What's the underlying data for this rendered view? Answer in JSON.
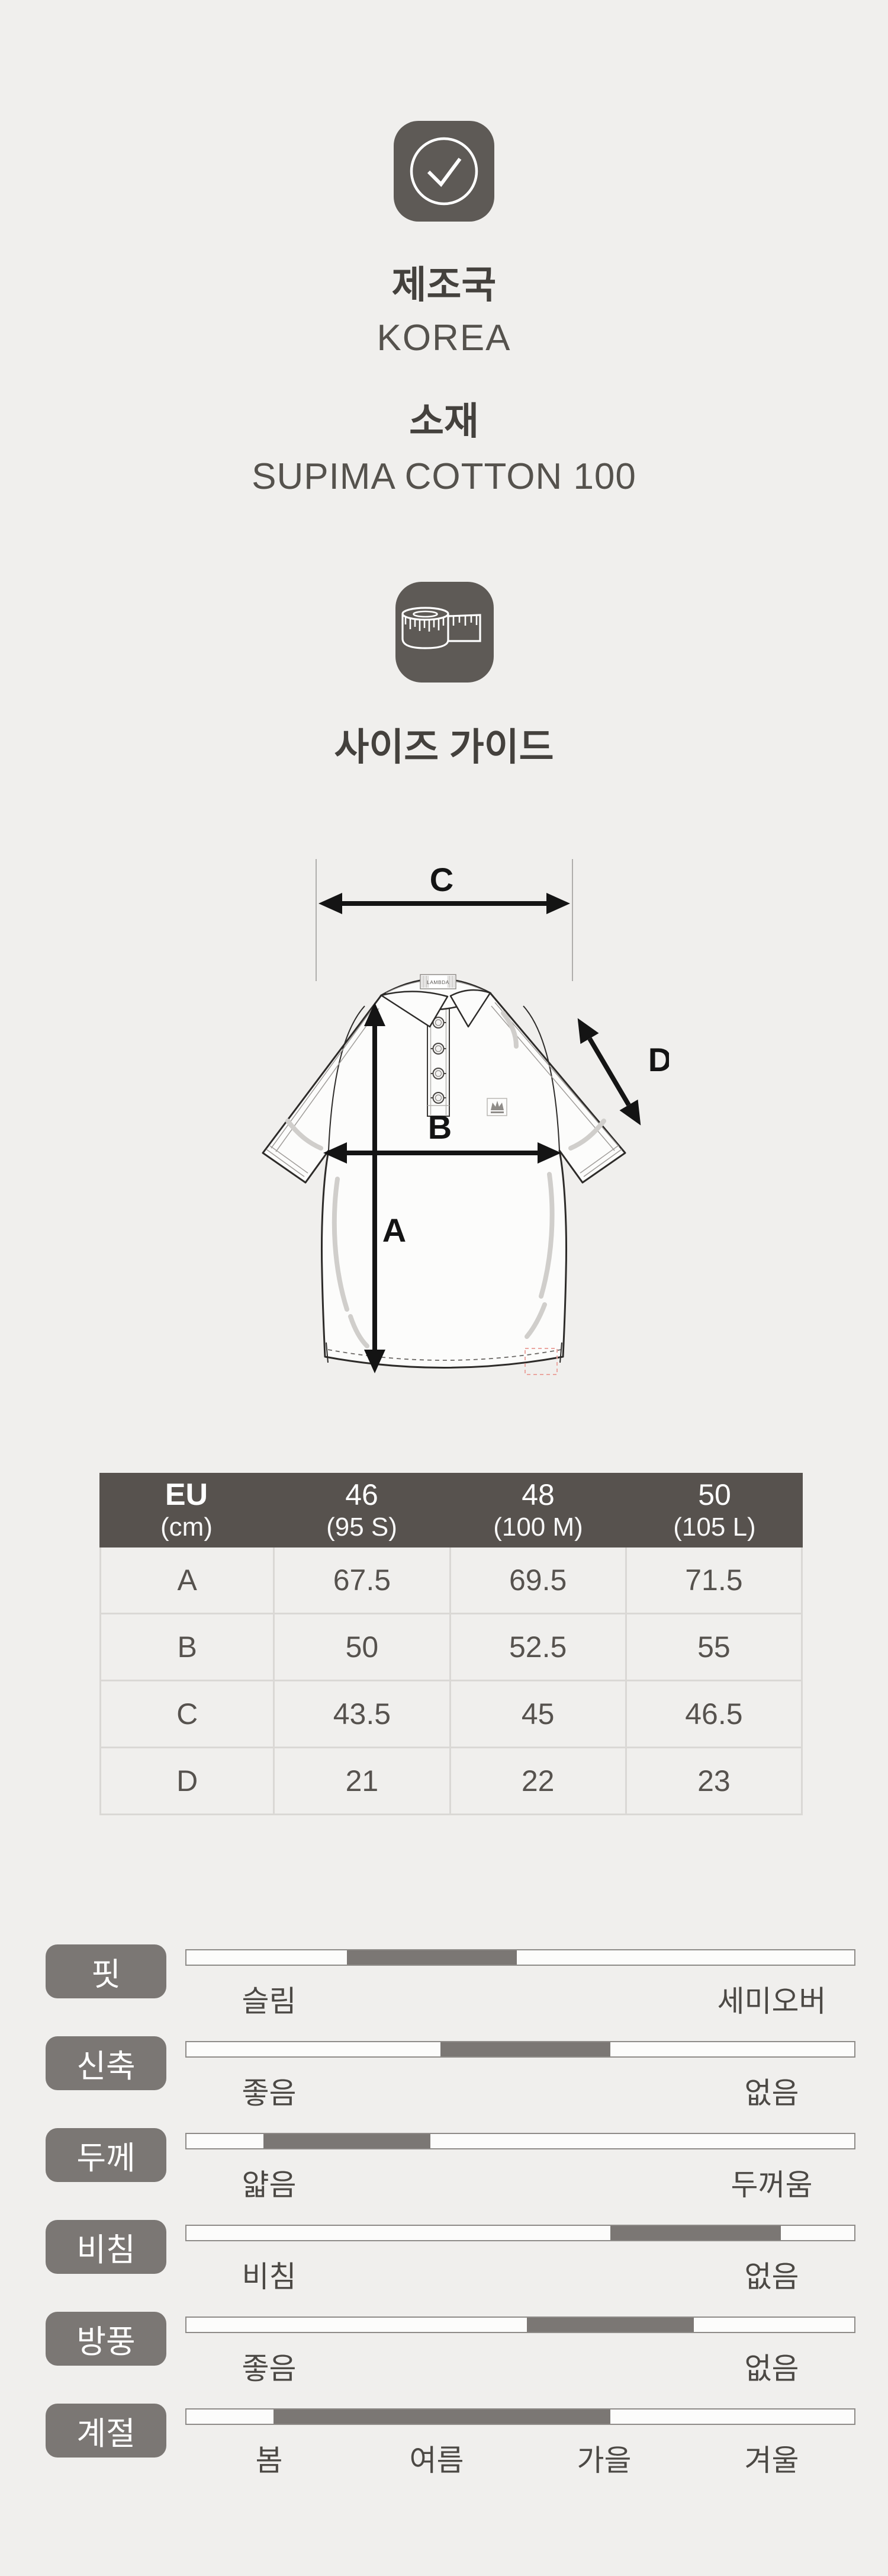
{
  "page": {
    "type": "product-detail-info"
  },
  "origin": {
    "heading": "제조국",
    "value": "KOREA"
  },
  "material": {
    "heading": "소재",
    "value": "SUPIMA COTTON 100"
  },
  "size_guide": {
    "heading": "사이즈 가이드",
    "diagram": {
      "brand_label": "LAMBDA",
      "labels": {
        "a": "A",
        "b": "B",
        "c": "C",
        "d": "D"
      }
    }
  },
  "size_table": {
    "unit_header": {
      "line1": "EU",
      "line2": "(cm)"
    },
    "size_headers": [
      {
        "line1": "46",
        "line2": "(95 S)"
      },
      {
        "line1": "48",
        "line2": "(100 M)"
      },
      {
        "line1": "50",
        "line2": "(105 L)"
      }
    ],
    "rows": [
      {
        "label": "A",
        "values": [
          "67.5",
          "69.5",
          "71.5"
        ]
      },
      {
        "label": "B",
        "values": [
          "50",
          "52.5",
          "55"
        ]
      },
      {
        "label": "C",
        "values": [
          "43.5",
          "45",
          "46.5"
        ]
      },
      {
        "label": "D",
        "values": [
          "21",
          "22",
          "23"
        ]
      }
    ]
  },
  "attribute_sliders": [
    {
      "key": "fit",
      "name": "핏",
      "fill_start_pct": 24,
      "fill_end_pct": 49.5,
      "labels": [
        {
          "text": "슬림",
          "pos_pct": 12.5
        },
        {
          "text": "세미오버",
          "pos_pct": 87.5
        }
      ]
    },
    {
      "key": "stretch",
      "name": "신축",
      "fill_start_pct": 38,
      "fill_end_pct": 63.5,
      "labels": [
        {
          "text": "좋음",
          "pos_pct": 12.5
        },
        {
          "text": "없음",
          "pos_pct": 87.5
        }
      ]
    },
    {
      "key": "thickness",
      "name": "두께",
      "fill_start_pct": 11.5,
      "fill_end_pct": 36.5,
      "labels": [
        {
          "text": "얇음",
          "pos_pct": 12.5
        },
        {
          "text": "두꺼움",
          "pos_pct": 87.5
        }
      ]
    },
    {
      "key": "sheerness",
      "name": "비침",
      "fill_start_pct": 63.5,
      "fill_end_pct": 89,
      "labels": [
        {
          "text": "비침",
          "pos_pct": 12.5
        },
        {
          "text": "없음",
          "pos_pct": 87.5
        }
      ]
    },
    {
      "key": "windproof",
      "name": "방풍",
      "fill_start_pct": 51,
      "fill_end_pct": 76,
      "labels": [
        {
          "text": "좋음",
          "pos_pct": 12.5
        },
        {
          "text": "없음",
          "pos_pct": 87.5
        }
      ]
    },
    {
      "key": "season",
      "name": "계절",
      "fill_start_pct": 13,
      "fill_end_pct": 63.5,
      "labels": [
        {
          "text": "봄",
          "pos_pct": 12.5
        },
        {
          "text": "여름",
          "pos_pct": 37.5
        },
        {
          "text": "가을",
          "pos_pct": 62.5
        },
        {
          "text": "겨울",
          "pos_pct": 87.5
        }
      ]
    }
  ],
  "colors": {
    "page_bg": "#F0EFED",
    "icon_bg": "#5E5A56",
    "heading_text": "#44413D",
    "value_text": "#55524D",
    "table_header_bg": "#57524E",
    "table_header_text": "#FFFFFF",
    "table_body_text": "#56524E",
    "table_line": "#DAD8D5",
    "slider_badge_bg": "#7B7774",
    "slider_fill": "#7B7774",
    "slider_track_bg": "#FCFCFB",
    "slider_track_border": "#8E8B88",
    "slider_label_text": "#4C4945",
    "diagram_outline": "#2D2B29",
    "arrow_color": "#141414"
  }
}
